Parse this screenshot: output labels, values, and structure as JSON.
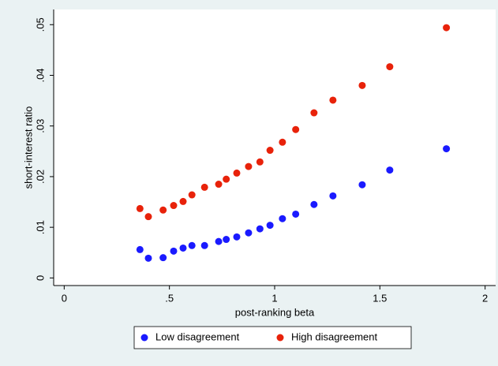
{
  "chart_data": {
    "type": "scatter",
    "xlabel": "post-ranking beta",
    "ylabel": "short-interest ratio",
    "xlim": [
      -0.05,
      2.05
    ],
    "ylim": [
      -0.0015,
      0.053
    ],
    "xticks": [
      0,
      {
        "value": 0.5,
        "label": ".5"
      },
      1,
      1.5,
      2
    ],
    "yticks": [
      0,
      {
        "value": 0.01,
        "label": ".01"
      },
      {
        "value": 0.02,
        "label": ".02"
      },
      {
        "value": 0.03,
        "label": ".03"
      },
      {
        "value": 0.04,
        "label": ".04"
      },
      {
        "value": 0.05,
        "label": ".05"
      }
    ],
    "legend": "bottom",
    "series": [
      {
        "name": "Low disagreement",
        "color": "#1a1aff",
        "x": [
          0.36,
          0.4,
          0.47,
          0.52,
          0.565,
          0.607,
          0.667,
          0.734,
          0.77,
          0.82,
          0.876,
          0.93,
          0.978,
          1.037,
          1.1,
          1.187,
          1.277,
          1.416,
          1.547,
          1.816
        ],
        "values": [
          0.0056,
          0.0039,
          0.004,
          0.0053,
          0.0059,
          0.0064,
          0.0064,
          0.0072,
          0.0076,
          0.0081,
          0.0089,
          0.0097,
          0.0104,
          0.0117,
          0.0126,
          0.0145,
          0.0162,
          0.0184,
          0.0213,
          0.0255
        ]
      },
      {
        "name": "High disagreement",
        "color": "#e8220a",
        "x": [
          0.36,
          0.4,
          0.47,
          0.52,
          0.565,
          0.607,
          0.667,
          0.734,
          0.77,
          0.82,
          0.876,
          0.93,
          0.978,
          1.037,
          1.1,
          1.187,
          1.277,
          1.416,
          1.547,
          1.816
        ],
        "values": [
          0.0137,
          0.0121,
          0.0134,
          0.0143,
          0.0151,
          0.0164,
          0.0179,
          0.0185,
          0.0195,
          0.0207,
          0.022,
          0.0229,
          0.0252,
          0.0268,
          0.0293,
          0.0326,
          0.0351,
          0.038,
          0.0417,
          0.0494
        ]
      }
    ]
  }
}
